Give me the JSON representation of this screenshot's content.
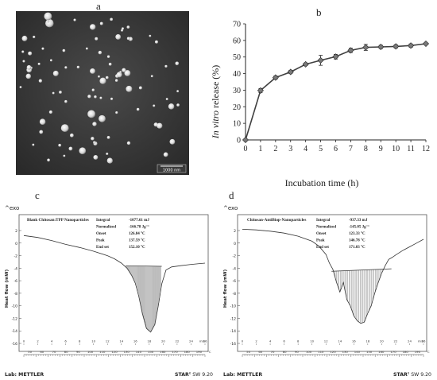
{
  "panels": {
    "a": "a",
    "b": "b",
    "c": "c",
    "d": "d"
  },
  "tem": {
    "scale_bar": "1000 nm"
  },
  "chart_data": [
    {
      "type": "line",
      "title": "",
      "xlabel": "Incubation time (h)",
      "ylabel_italic": "In vitro",
      "ylabel_rest": " release (%)",
      "x": [
        0,
        1,
        2,
        3,
        4,
        5,
        6,
        7,
        8,
        9,
        10,
        11,
        12
      ],
      "values": [
        0,
        29.8,
        37.6,
        41.0,
        45.6,
        48.0,
        50.2,
        54.0,
        55.8,
        56.1,
        56.4,
        56.9,
        58.0
      ],
      "errors": [
        0,
        1.2,
        1.0,
        0.9,
        0.8,
        3.0,
        1.4,
        1.3,
        1.8,
        1.0,
        1.0,
        1.0,
        0.6
      ],
      "xticks": [
        0,
        1,
        2,
        3,
        4,
        5,
        6,
        7,
        8,
        9,
        10,
        11,
        12
      ],
      "yticks": [
        0,
        10,
        20,
        30,
        40,
        50,
        60,
        70
      ],
      "xlim": [
        0,
        12
      ],
      "ylim": [
        0,
        70
      ],
      "grid": false,
      "legend": "none",
      "line_color": "#404040",
      "marker_color": "#7a7a7a"
    },
    {
      "type": "line",
      "title": "Blank Chitosan:TPP Nanoparticles",
      "exo_label": "^exo",
      "ylabel": "Heat flow (mW)",
      "xunit": "min",
      "yticks": [
        2,
        0,
        -2,
        -4,
        -6,
        -8,
        -10,
        -12,
        -14,
        -16
      ],
      "xticks_min": [
        0,
        2,
        4,
        6,
        8,
        10,
        12,
        14,
        16,
        18,
        20,
        22,
        24,
        26
      ],
      "xticks_temp": [
        50,
        60,
        70,
        80,
        90,
        100,
        110,
        120,
        130,
        140,
        150,
        160,
        170,
        180,
        190
      ],
      "temp_unit": "°C",
      "curve_t": [
        0,
        2,
        4,
        6,
        8,
        10,
        12,
        13,
        14,
        14.8,
        15.5,
        16.0,
        16.5,
        17.0,
        17.6,
        18.2,
        18.8,
        19.3,
        19.8,
        20.4,
        21.2,
        22.5,
        24,
        26
      ],
      "curve_y": [
        1.2,
        0.9,
        0.4,
        -0.2,
        -0.7,
        -1.3,
        -2.0,
        -2.5,
        -3.2,
        -4.0,
        -5.2,
        -6.4,
        -8.5,
        -11.2,
        -13.6,
        -14.2,
        -13.0,
        -10.0,
        -6.5,
        -4.3,
        -3.8,
        -3.6,
        -3.4,
        -3.2
      ],
      "baseline": [
        14.6,
        -3.6,
        19.8,
        -3.7
      ],
      "stats": [
        {
          "label": "Integral",
          "value": "-1077.61 mJ"
        },
        {
          "label": "Normalized",
          "value": "-166.78 Jg⁻¹"
        },
        {
          "label": "Onset",
          "value": "126.84 °C"
        },
        {
          "label": "Peak",
          "value": "137.59 °C"
        },
        {
          "label": "End set",
          "value": "152.10 °C"
        }
      ],
      "footer_left": "Lab: METTLER",
      "footer_right_bold": "STAR",
      "footer_right_sup": "e",
      "footer_right_rest": " SW 9.20"
    },
    {
      "type": "line",
      "title": "Chitosan-AntiBiop-Nanoparticles",
      "exo_label": "^exo",
      "ylabel": "Heat flow (mW)",
      "xunit": "min",
      "yticks": [
        2,
        0,
        -2,
        -4,
        -6,
        -8,
        -10,
        -12,
        -14,
        -16
      ],
      "xticks_min": [
        0,
        2,
        4,
        6,
        8,
        10,
        12,
        14,
        16,
        18,
        20,
        22,
        24,
        26
      ],
      "xticks_temp": [
        50,
        60,
        70,
        80,
        90,
        100,
        110,
        120,
        130,
        140,
        150,
        160,
        170,
        180,
        190
      ],
      "temp_unit": "°C",
      "curve_t": [
        0,
        2,
        4,
        6,
        8,
        10,
        11,
        12,
        12.5,
        13,
        13.5,
        14,
        14.5,
        15,
        15.5,
        16,
        16.5,
        17,
        17.5,
        18,
        18.5,
        19,
        19.5,
        20,
        20.5,
        21,
        21.5,
        22,
        23,
        24,
        25,
        26
      ],
      "curve_y": [
        2.2,
        2.1,
        1.9,
        1.6,
        1.1,
        0.3,
        -0.5,
        -1.8,
        -3.2,
        -4.2,
        -6.2,
        -7.8,
        -6.3,
        -9.0,
        -10.0,
        -11.6,
        -12.4,
        -12.8,
        -12.6,
        -11.2,
        -10.0,
        -8.0,
        -6.3,
        -4.8,
        -3.6,
        -2.6,
        -2.3,
        -1.9,
        -1.2,
        -0.6,
        0.0,
        0.6
      ],
      "baseline": [
        12.8,
        -4.5,
        21.4,
        -4.1
      ],
      "stats": [
        {
          "label": "Integral",
          "value": "-937.33 mJ"
        },
        {
          "label": "Normalized",
          "value": "-145.05 Jg⁻¹"
        },
        {
          "label": "Onset",
          "value": "123.33 °C"
        },
        {
          "label": "Peak",
          "value": "146.78 °C"
        },
        {
          "label": "End set",
          "value": "171.03 °C"
        }
      ],
      "footer_left": "Lab: METTLER",
      "footer_right_bold": "STAR",
      "footer_right_sup": "e",
      "footer_right_rest": " SW 9.20"
    }
  ]
}
